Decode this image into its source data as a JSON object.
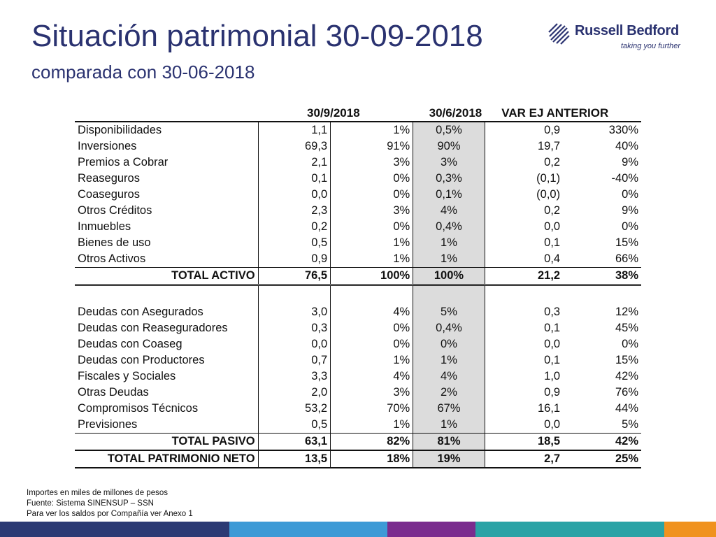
{
  "header": {
    "title": "Situación patrimonial 30-09-2018",
    "subtitle": "comparada con 30-06-2018"
  },
  "logo": {
    "name": "Russell Bedford",
    "tagline": "taking you further",
    "icon": "globe-logo-icon"
  },
  "table": {
    "headers": [
      "30/9/2018",
      "30/6/2018",
      "VAR EJ ANTERIOR"
    ],
    "assets": [
      {
        "label": "Disponibilidades",
        "v": "1,1",
        "p1": "1%",
        "p2": "0,5%",
        "var": "0,9",
        "pv": "330%"
      },
      {
        "label": "Inversiones",
        "v": "69,3",
        "p1": "91%",
        "p2": "90%",
        "var": "19,7",
        "pv": "40%"
      },
      {
        "label": "Premios a Cobrar",
        "v": "2,1",
        "p1": "3%",
        "p2": "3%",
        "var": "0,2",
        "pv": "9%"
      },
      {
        "label": "Reaseguros",
        "v": "0,1",
        "p1": "0%",
        "p2": "0,3%",
        "var": "(0,1)",
        "pv": "-40%"
      },
      {
        "label": "Coaseguros",
        "v": "0,0",
        "p1": "0%",
        "p2": "0,1%",
        "var": "(0,0)",
        "pv": "0%"
      },
      {
        "label": "Otros Créditos",
        "v": "2,3",
        "p1": "3%",
        "p2": "4%",
        "var": "0,2",
        "pv": "9%"
      },
      {
        "label": "Inmuebles",
        "v": "0,2",
        "p1": "0%",
        "p2": "0,4%",
        "var": "0,0",
        "pv": "0%"
      },
      {
        "label": "Bienes de uso",
        "v": "0,5",
        "p1": "1%",
        "p2": "1%",
        "var": "0,1",
        "pv": "15%"
      },
      {
        "label": "Otros Activos",
        "v": "0,9",
        "p1": "1%",
        "p2": "1%",
        "var": "0,4",
        "pv": "66%"
      }
    ],
    "total_activo": {
      "label": "TOTAL ACTIVO",
      "v": "76,5",
      "p1": "100%",
      "p2": "100%",
      "var": "21,2",
      "pv": "38%"
    },
    "liabilities": [
      {
        "label": "Deudas con Asegurados",
        "v": "3,0",
        "p1": "4%",
        "p2": "5%",
        "var": "0,3",
        "pv": "12%"
      },
      {
        "label": "Deudas con Reaseguradores",
        "v": "0,3",
        "p1": "0%",
        "p2": "0,4%",
        "var": "0,1",
        "pv": "45%"
      },
      {
        "label": "Deudas con Coaseg",
        "v": "0,0",
        "p1": "0%",
        "p2": "0%",
        "var": "0,0",
        "pv": "0%"
      },
      {
        "label": "Deudas con Productores",
        "v": "0,7",
        "p1": "1%",
        "p2": "1%",
        "var": "0,1",
        "pv": "15%"
      },
      {
        "label": "Fiscales y Sociales",
        "v": "3,3",
        "p1": "4%",
        "p2": "4%",
        "var": "1,0",
        "pv": "42%"
      },
      {
        "label": "Otras Deudas",
        "v": "2,0",
        "p1": "3%",
        "p2": "2%",
        "var": "0,9",
        "pv": "76%"
      },
      {
        "label": "Compromisos Técnicos",
        "v": "53,2",
        "p1": "70%",
        "p2": "67%",
        "var": "16,1",
        "pv": "44%"
      },
      {
        "label": "Previsiones",
        "v": "0,5",
        "p1": "1%",
        "p2": "1%",
        "var": "0,0",
        "pv": "5%"
      }
    ],
    "total_pasivo": {
      "label": "TOTAL PASIVO",
      "v": "63,1",
      "p1": "82%",
      "p2": "81%",
      "var": "18,5",
      "pv": "42%"
    },
    "total_patrimonio": {
      "label": "TOTAL PATRIMONIO NETO",
      "v": "13,5",
      "p1": "18%",
      "p2": "19%",
      "var": "2,7",
      "pv": "25%"
    }
  },
  "footnotes": [
    "Importes en miles de millones de pesos",
    "Fuente: Sistema SINENSUP – SSN",
    "Para ver los saldos por Compañía ver Anexo 1"
  ],
  "colors": {
    "title": "#2a3270",
    "shaded_column": "#dcdcdc",
    "bar_navy": "#2b3a74",
    "bar_blue": "#3d9ad6",
    "bar_purple": "#7a2c8e",
    "bar_teal": "#2aa3a6",
    "bar_orange": "#f0921e"
  }
}
